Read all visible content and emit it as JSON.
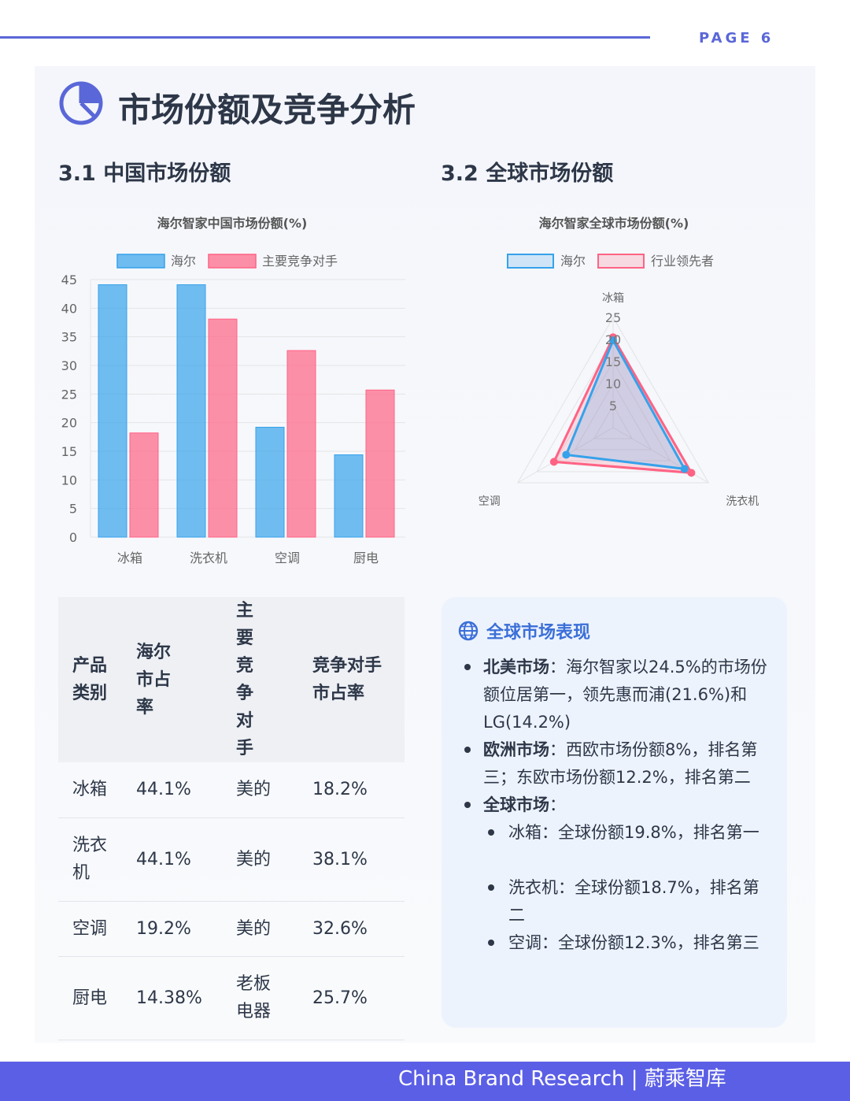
{
  "header": {
    "page_label": "PAGE 6"
  },
  "page": {
    "title": "市场份额及竞争分析"
  },
  "sections": {
    "china_title": "3.1 中国市场份额",
    "global_title": "3.2 全球市场份额"
  },
  "colors": {
    "accent": "#5a67d8",
    "haier_blue": "#36a2eb",
    "rival_pink": "#ff6384",
    "footer": "#5b5fe6"
  },
  "chart_data": [
    {
      "type": "bar",
      "title": "海尔智家中国市场份额(%)",
      "categories": [
        "冰箱",
        "洗衣机",
        "空调",
        "厨电"
      ],
      "series": [
        {
          "name": "海尔",
          "values": [
            44.1,
            44.1,
            19.2,
            14.38
          ]
        },
        {
          "name": "主要竞争对手",
          "values": [
            18.2,
            38.1,
            32.6,
            25.7
          ]
        }
      ],
      "ylim": [
        0,
        45
      ],
      "yticks": [
        0,
        5,
        10,
        15,
        20,
        25,
        30,
        35,
        40,
        45
      ],
      "legend": "top",
      "grid": true
    },
    {
      "type": "radar",
      "title": "海尔智家全球市场份额(%)",
      "axes": [
        "冰箱",
        "洗衣机",
        "空调"
      ],
      "series": [
        {
          "name": "海尔",
          "values": [
            19.8,
            18.7,
            12.3
          ]
        },
        {
          "name": "行业领先者",
          "values": [
            20.5,
            20.5,
            15.5
          ]
        }
      ],
      "rlim": [
        0,
        25
      ],
      "rticks": [
        5,
        10,
        15,
        20,
        25
      ],
      "legend": "top"
    }
  ],
  "table": {
    "headers": [
      "产品类别",
      "海尔市占率",
      "主要竞争对手",
      "竞争对手市占率"
    ],
    "rows": [
      [
        "冰箱",
        "44.1%",
        "美的",
        "18.2%"
      ],
      [
        "洗衣机",
        "44.1%",
        "美的",
        "38.1%"
      ],
      [
        "空调",
        "19.2%",
        "美的",
        "32.6%"
      ],
      [
        "厨电",
        "14.38%",
        "老板电器",
        "25.7%"
      ]
    ]
  },
  "info": {
    "title": "全球市场表现",
    "items": [
      {
        "label": "北美市场",
        "text": "：海尔智家以24.5%的市场份额位居第一，领先惠而浦(21.6%)和LG(14.2%)"
      },
      {
        "label": "欧洲市场",
        "text": "：西欧市场份额8%，排名第三；东欧市场份额12.2%，排名第二"
      },
      {
        "label": "全球市场",
        "text": "："
      }
    ],
    "sub_items": [
      "冰箱：全球份额19.8%，排名第一",
      "洗衣机：全球份额18.7%，排名第二",
      "空调：全球份额12.3%，排名第三"
    ]
  },
  "footer": {
    "text": "China Brand Research | 蔚乘智库"
  }
}
